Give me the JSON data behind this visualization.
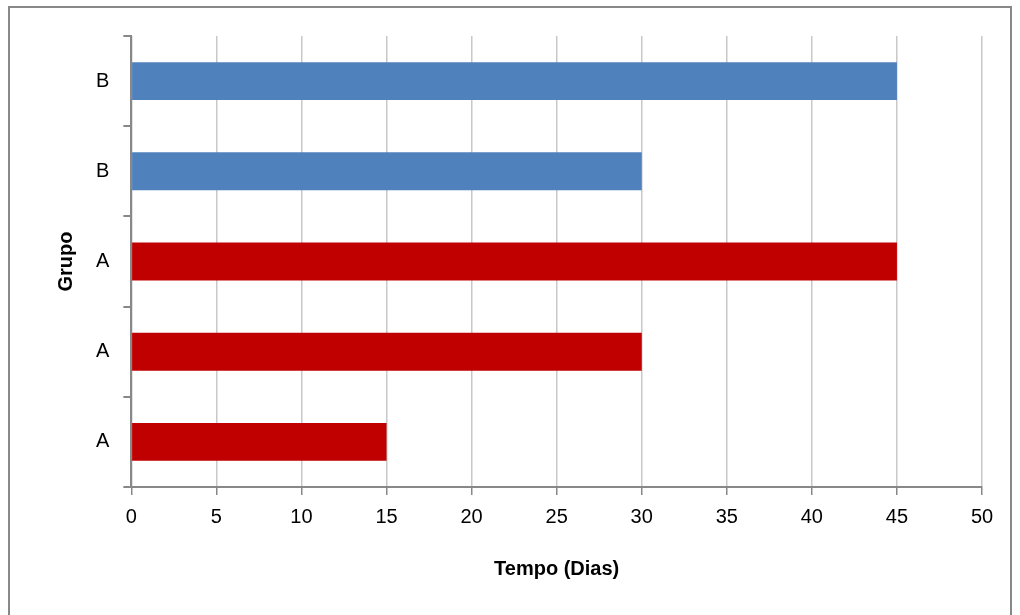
{
  "chart_data": {
    "type": "bar",
    "orientation": "horizontal",
    "xlabel": "Tempo (Dias)",
    "ylabel": "Grupo",
    "categories": [
      "B",
      "B",
      "A",
      "A",
      "A"
    ],
    "values": [
      45,
      30,
      45,
      30,
      15
    ],
    "colors": [
      "#4f81bd",
      "#4f81bd",
      "#c00000",
      "#c00000",
      "#c00000"
    ],
    "xlim": [
      0,
      50
    ],
    "xticks": [
      0,
      5,
      10,
      15,
      20,
      25,
      30,
      35,
      40,
      45,
      50
    ],
    "grid": "x",
    "legend": false
  }
}
